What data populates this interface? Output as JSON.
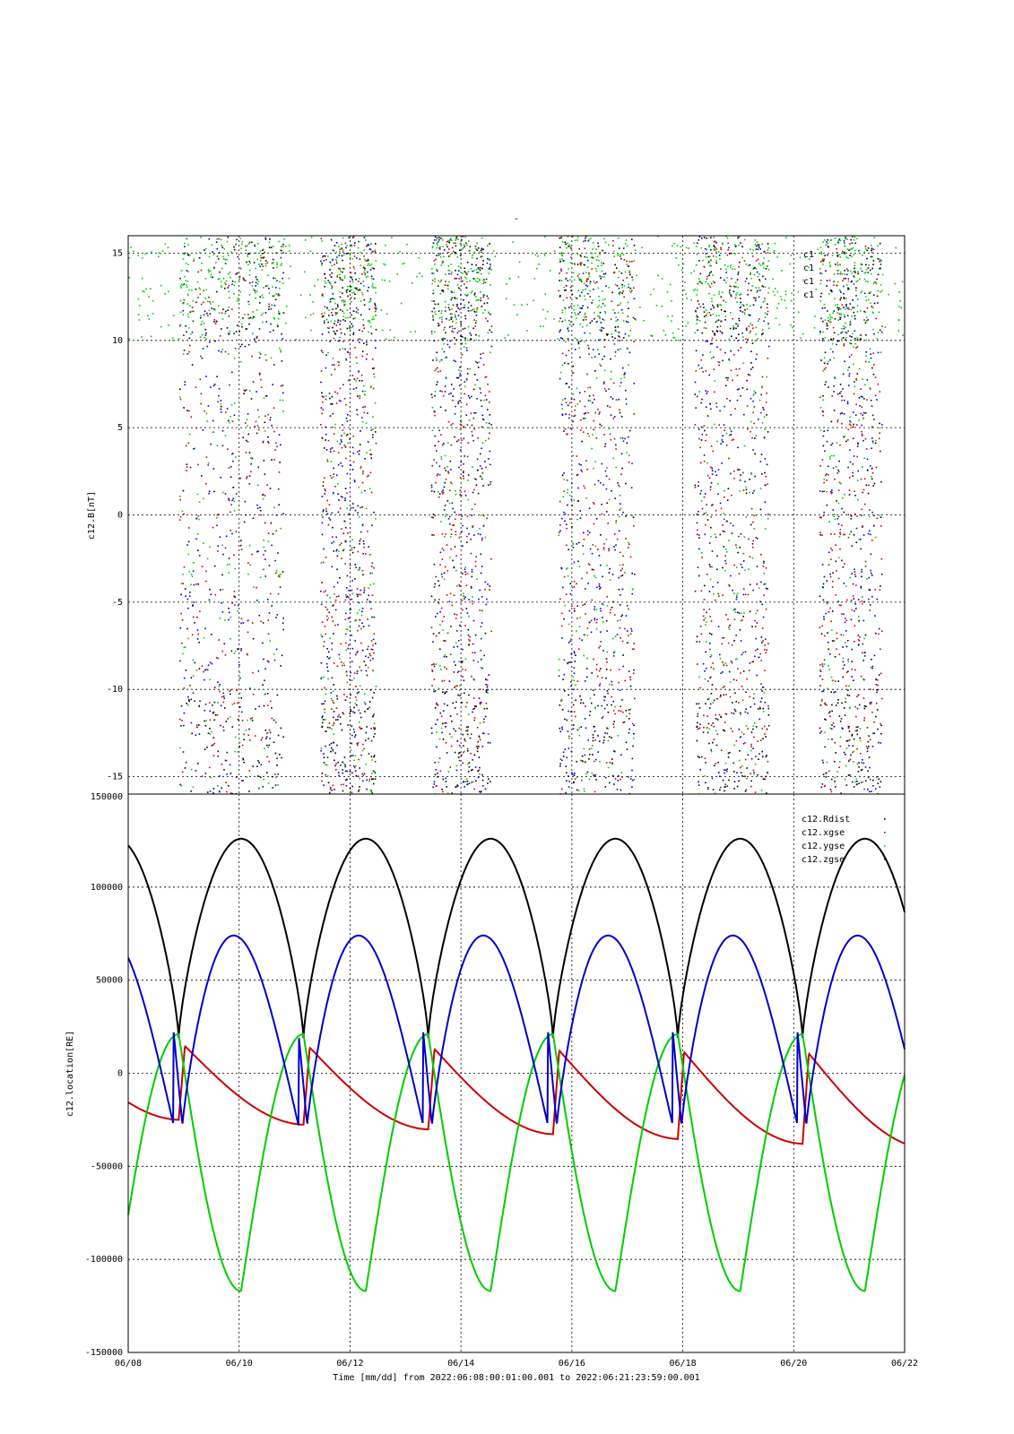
{
  "figure": {
    "top_title": "-",
    "xlabel": "Time [mm/dd]  from 2022:06:08:00:01:00.001  to  2022:06:21:23:59:00.001"
  },
  "chart_data": [
    {
      "type": "scatter",
      "ylabel": "c12.B[nT]",
      "ylim": [
        -16,
        16
      ],
      "yticks": [
        15,
        10,
        5,
        0,
        -5,
        -10,
        -15
      ],
      "xlim": [
        "06/08",
        "06/22"
      ],
      "xticks": [
        "06/08",
        "06/10",
        "06/12",
        "06/14",
        "06/16",
        "06/18",
        "06/20",
        "06/22"
      ],
      "grid": true,
      "legend_position": "top-right",
      "legend": [
        "c1",
        "c1",
        "c1",
        "c1"
      ],
      "series_colors": [
        "#000000",
        "#cc0000",
        "#00cc00",
        "#0000cc"
      ],
      "bursts": [
        {
          "start": "06/08 22:00",
          "end": "06/10 19:00"
        },
        {
          "start": "06/11 11:00",
          "end": "06/12 11:00"
        },
        {
          "start": "06/13 11:00",
          "end": "06/14 13:00"
        },
        {
          "start": "06/15 18:00",
          "end": "06/17 03:00"
        },
        {
          "start": "06/18 05:00",
          "end": "06/19 13:00"
        },
        {
          "start": "06/20 11:00",
          "end": "06/21 14:00"
        }
      ]
    },
    {
      "type": "line",
      "ylabel": "c12.location[RE]",
      "ylim": [
        -150000,
        150000
      ],
      "yticks": [
        150000,
        100000,
        50000,
        0,
        -50000,
        -100000,
        -150000
      ],
      "xlim": [
        "06/08",
        "06/22"
      ],
      "xticks": [
        "06/08",
        "06/10",
        "06/12",
        "06/14",
        "06/16",
        "06/18",
        "06/20",
        "06/22"
      ],
      "grid": true,
      "legend_position": "top-right",
      "period_days": 2.25,
      "perigee_days_after_start": [
        0.91,
        3.16,
        5.41,
        7.66,
        9.91,
        12.16
      ],
      "series": [
        {
          "name": "c12.Rdist",
          "color": "#000000",
          "min": 19000,
          "max": 126000
        },
        {
          "name": "c12.xgse",
          "color": "#cc0000",
          "min_range": [
            -24000,
            -40000
          ],
          "max_range": [
            15000,
            10000
          ]
        },
        {
          "name": "c12.ygse",
          "color": "#00cc00",
          "min": -117000,
          "max": 21000
        },
        {
          "name": "c12.zgse",
          "color": "#0000cc",
          "min": -28000,
          "max": 74000
        }
      ]
    }
  ]
}
